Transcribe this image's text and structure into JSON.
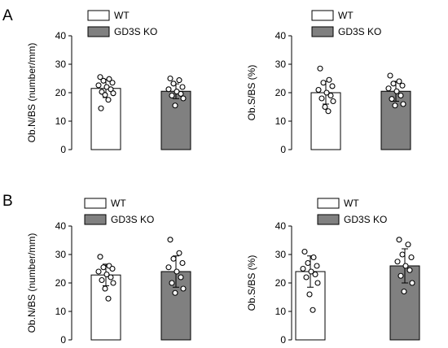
{
  "panels": [
    {
      "letter": "A"
    },
    {
      "letter": "B"
    }
  ],
  "colors": {
    "wt_fill": "#ffffff",
    "ko_fill": "#808080",
    "stroke": "#000000"
  },
  "chart_data": [
    {
      "type": "bar",
      "panel": "A",
      "ylabel": "Ob.N/BS (number/mm)",
      "ylim": [
        0,
        40
      ],
      "yticks": [
        0,
        10,
        20,
        30,
        40
      ],
      "legend": [
        "WT",
        "GD3S KO"
      ],
      "legend_position": "top",
      "series": [
        {
          "name": "WT",
          "mean": 21.5,
          "sd": 3.2,
          "points": [
            25.5,
            24.8,
            24.2,
            23.5,
            22.6,
            22.0,
            21.2,
            20.3,
            19.8,
            19.2,
            17.5,
            14.5
          ]
        },
        {
          "name": "GD3S KO",
          "mean": 20.5,
          "sd": 2.6,
          "points": [
            25.0,
            24.4,
            23.2,
            22.0,
            21.2,
            20.4,
            19.6,
            19.0,
            18.0,
            15.5
          ]
        }
      ]
    },
    {
      "type": "bar",
      "panel": "A",
      "ylabel": "Ob.S/BS (%)",
      "ylim": [
        0,
        40
      ],
      "yticks": [
        0,
        10,
        20,
        30,
        40
      ],
      "legend": [
        "WT",
        "GD3S KO"
      ],
      "legend_position": "top",
      "series": [
        {
          "name": "WT",
          "mean": 20.0,
          "sd": 4.0,
          "points": [
            28.5,
            24.5,
            23.5,
            22.3,
            21.0,
            20.0,
            19.0,
            18.0,
            17.0,
            15.0,
            13.5
          ]
        },
        {
          "name": "GD3S KO",
          "mean": 20.5,
          "sd": 3.5,
          "points": [
            26.0,
            24.0,
            23.2,
            22.5,
            21.5,
            20.5,
            19.0,
            17.8,
            16.0,
            15.5
          ]
        }
      ]
    },
    {
      "type": "bar",
      "panel": "B",
      "ylabel": "Ob.N/BS (number/mm)",
      "ylim": [
        0,
        40
      ],
      "yticks": [
        0,
        10,
        20,
        30,
        40
      ],
      "legend": [
        "WT",
        "GD3S KO"
      ],
      "legend_position": "top",
      "series": [
        {
          "name": "WT",
          "mean": 22.8,
          "sd": 3.8,
          "points": [
            29.2,
            26.0,
            25.5,
            25.0,
            24.0,
            23.0,
            22.0,
            21.0,
            20.0,
            18.0,
            14.5
          ]
        },
        {
          "name": "GD3S KO",
          "mean": 24.0,
          "sd": 5.5,
          "points": [
            35.2,
            30.5,
            28.5,
            27.0,
            25.5,
            24.0,
            22.0,
            20.0,
            18.0,
            16.5
          ]
        }
      ]
    },
    {
      "type": "bar",
      "panel": "B",
      "ylabel": "Ob.S/BS (%)",
      "ylim": [
        0,
        40
      ],
      "yticks": [
        0,
        10,
        20,
        30,
        40
      ],
      "legend": [
        "WT",
        "GD3S KO"
      ],
      "legend_position": "top",
      "series": [
        {
          "name": "WT",
          "mean": 24.0,
          "sd": 5.5,
          "points": [
            31.0,
            29.0,
            27.0,
            26.0,
            25.0,
            24.0,
            23.0,
            22.0,
            20.0,
            16.0,
            10.5
          ]
        },
        {
          "name": "GD3S KO",
          "mean": 26.0,
          "sd": 6.0,
          "points": [
            35.2,
            33.5,
            30.0,
            29.0,
            27.5,
            26.0,
            24.5,
            22.5,
            20.0,
            17.0
          ]
        }
      ]
    }
  ]
}
